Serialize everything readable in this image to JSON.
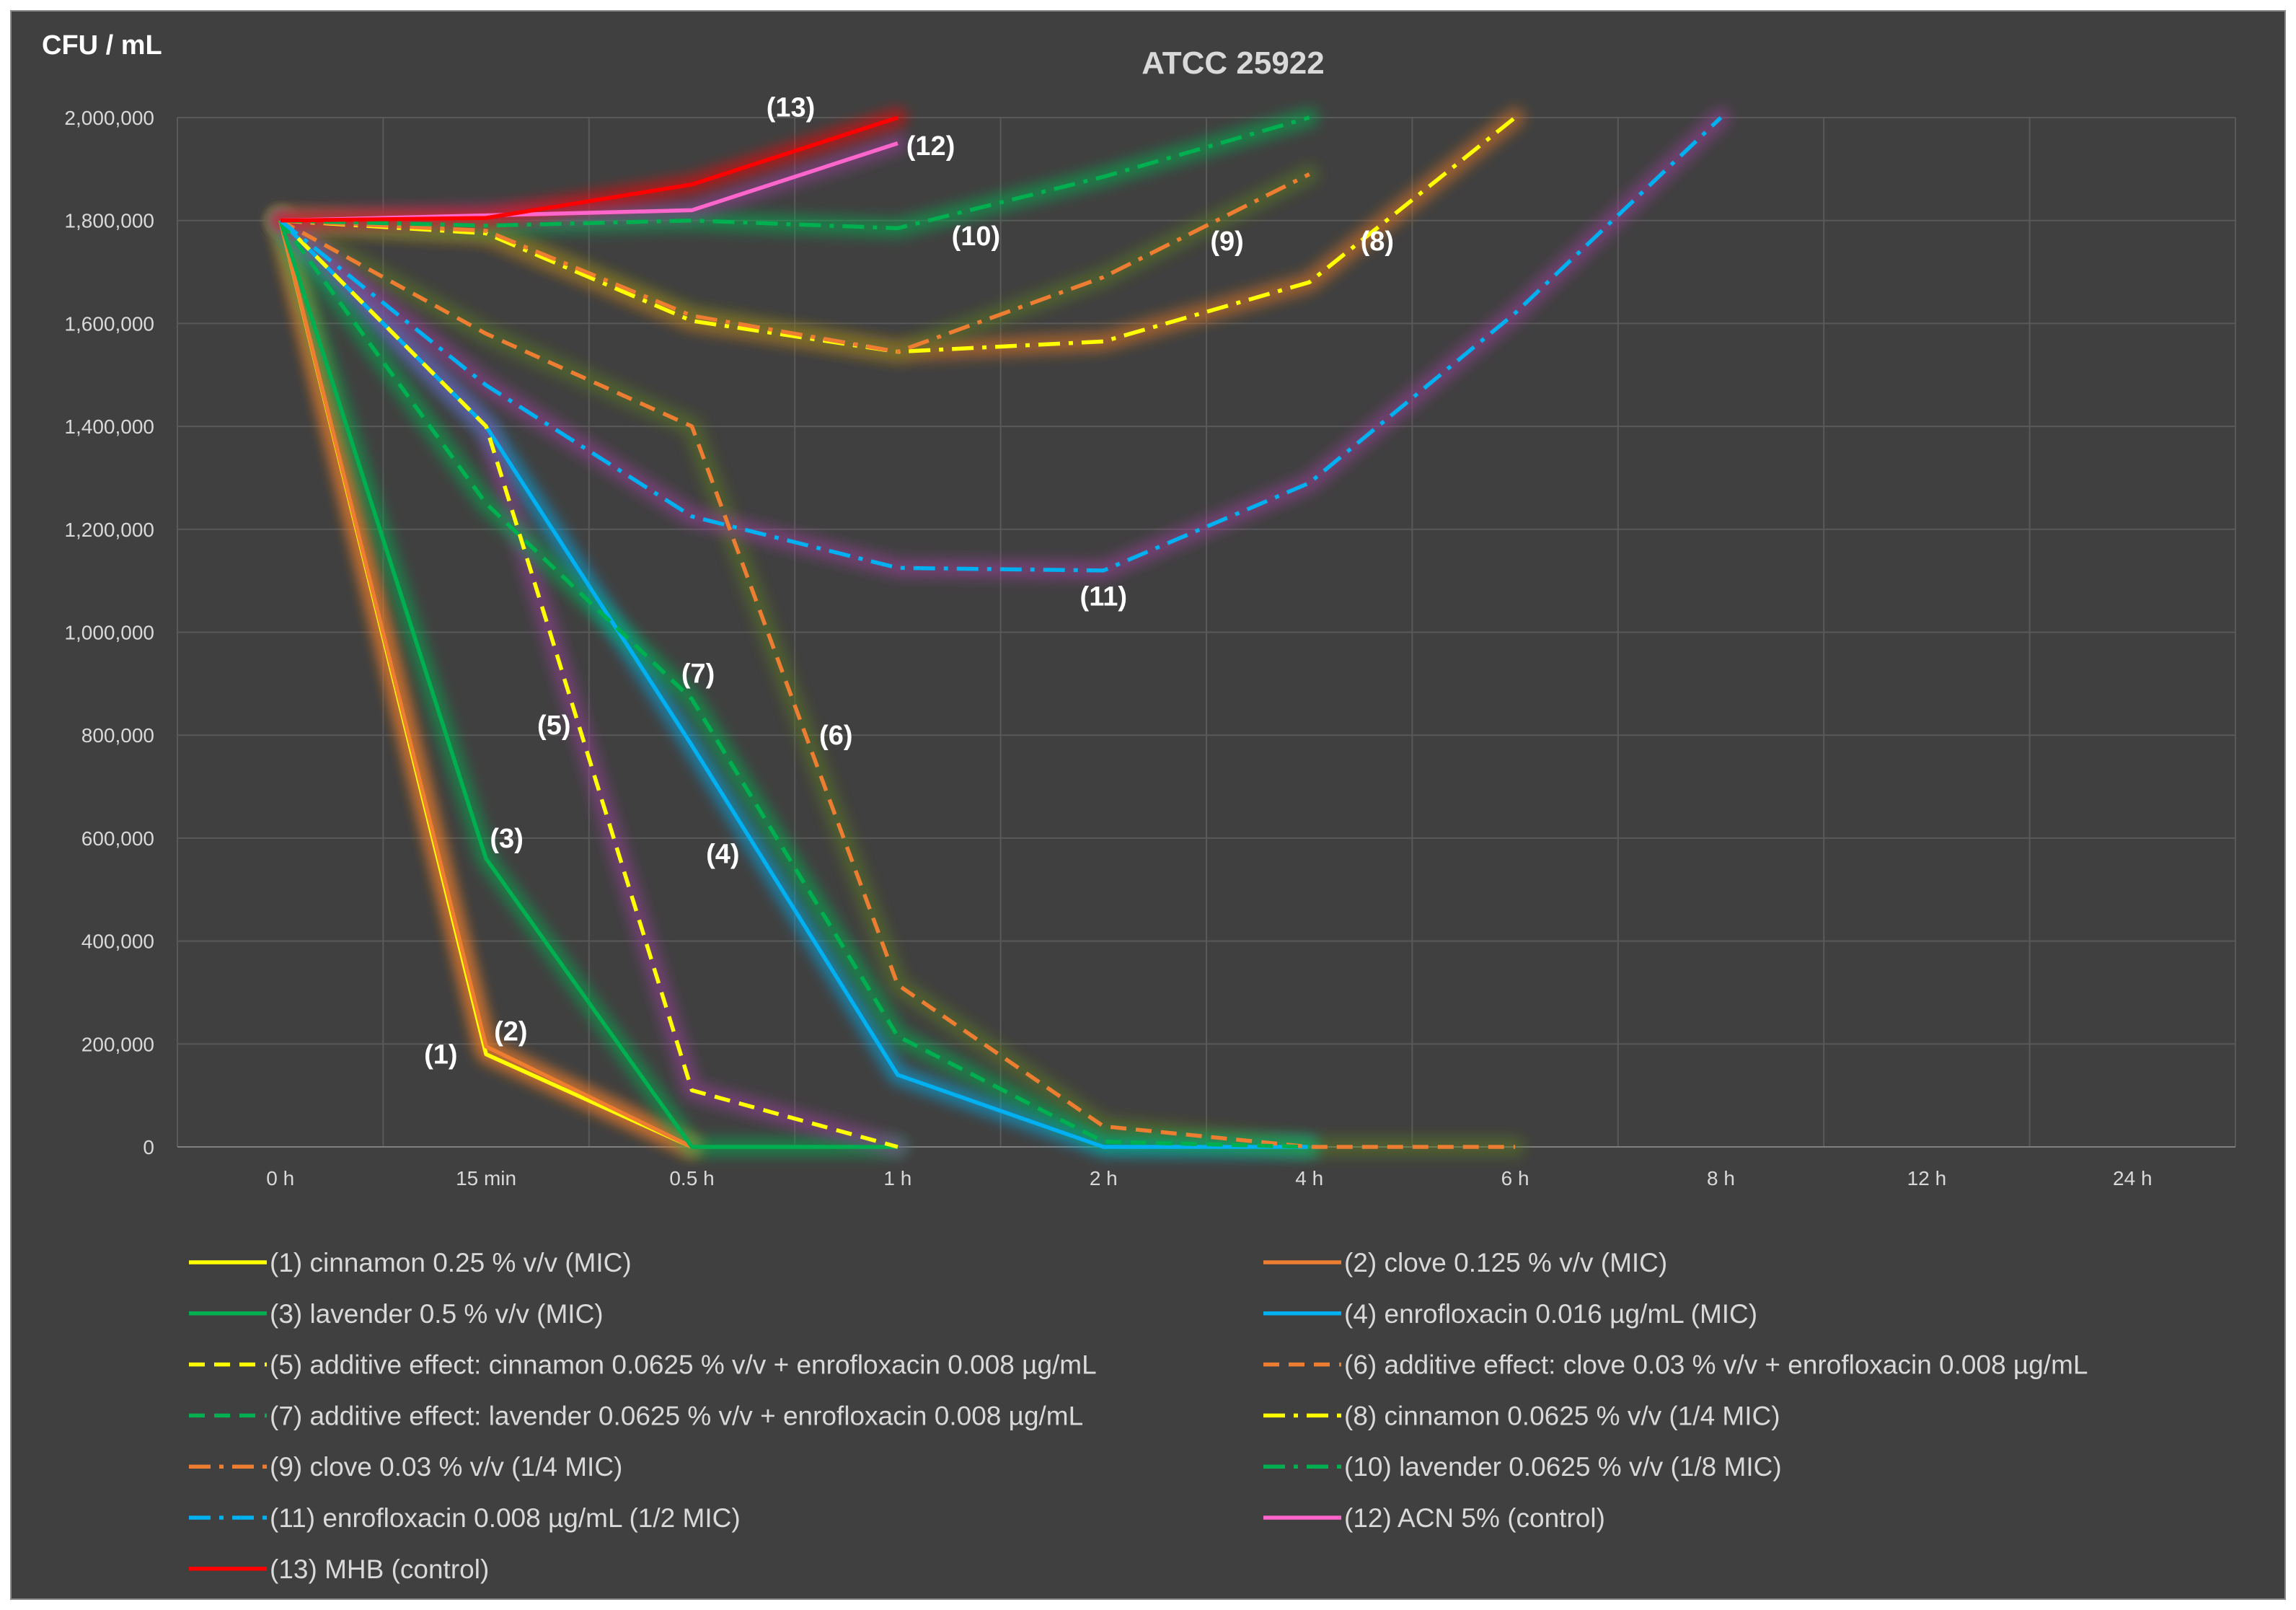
{
  "chart_data": {
    "type": "line",
    "title": "ATCC 25922",
    "ylabel": "CFU / mL",
    "xlabel": "",
    "categories": [
      "0 h",
      "15 min",
      "0.5 h",
      "1 h",
      "2 h",
      "4 h",
      "6 h",
      "8 h",
      "12 h",
      "24 h"
    ],
    "yticks": [
      "2,000,000",
      "1,800,000",
      "1,600,000",
      "1,400,000",
      "1,200,000",
      "1,000,000",
      "800,000",
      "600,000",
      "400,000",
      "200,000",
      "0"
    ],
    "ylim": [
      0,
      2000000
    ],
    "grid": true,
    "legend_position": "bottom",
    "series": [
      {
        "name": "(1) cinnamon 0.25 % v/v (MIC)",
        "label": "(1)",
        "color": "#ffff00",
        "dash": "solid",
        "glow": "#e87722",
        "values": [
          1800000,
          180000,
          0,
          null,
          null,
          null,
          null,
          null,
          null,
          null
        ],
        "label_value": [
          0.78,
          180000
        ]
      },
      {
        "name": "(2) clove 0.125 % v/v (MIC)",
        "label": "(2)",
        "color": "#ed7d31",
        "dash": "solid",
        "glow": "#ed7d31",
        "values": [
          1800000,
          195000,
          0,
          null,
          null,
          null,
          null,
          null,
          null,
          null
        ],
        "label_value": [
          1.12,
          225000
        ]
      },
      {
        "name": "(3) lavender 0.5 % v/v (MIC)",
        "label": "(3)",
        "color": "#00b050",
        "dash": "solid",
        "glow": "#00b050",
        "values": [
          1800000,
          560000,
          0,
          0,
          null,
          null,
          null,
          null,
          null,
          null
        ],
        "label_value": [
          1.1,
          600000
        ]
      },
      {
        "name": "(4) enrofloxacin 0.016 µg/mL (MIC)",
        "label": "(4)",
        "color": "#00b0f0",
        "dash": "solid",
        "glow": "#00b0f0",
        "values": [
          1800000,
          1400000,
          780000,
          140000,
          0,
          0,
          null,
          null,
          null,
          null
        ],
        "label_value": [
          2.15,
          570000
        ]
      },
      {
        "name": "(5) additive effect: cinnamon 0.0625 % v/v + enrofloxacin 0.008 µg/mL",
        "label": "(5)",
        "color": "#ffff00",
        "dash": "dash",
        "glow": "#9a3f9a",
        "values": [
          1800000,
          1400000,
          110000,
          0,
          null,
          null,
          null,
          null,
          null,
          null
        ],
        "label_value": [
          1.33,
          820000
        ]
      },
      {
        "name": "(6) additive effect: clove 0.03 % v/v + enrofloxacin 0.008 µg/mL",
        "label": "(6)",
        "color": "#ed7d31",
        "dash": "dash",
        "glow": "#5b7a1f",
        "values": [
          1800000,
          1580000,
          1400000,
          315000,
          40000,
          0,
          0,
          null,
          null,
          null
        ],
        "label_value": [
          2.7,
          800000
        ]
      },
      {
        "name": "(7) additive effect: lavender 0.0625 % v/v + enrofloxacin 0.008 µg/mL",
        "label": "(7)",
        "color": "#00b050",
        "dash": "dash",
        "glow": "#00b050",
        "values": [
          1800000,
          1250000,
          870000,
          215000,
          10000,
          0,
          null,
          null,
          null,
          null
        ],
        "label_value": [
          2.03,
          920000
        ]
      },
      {
        "name": "(8) cinnamon 0.0625 % v/v (1/4 MIC)",
        "label": "(8)",
        "color": "#ffff00",
        "dash": "dashdot",
        "glow": "#e87722",
        "values": [
          1800000,
          1775000,
          1605000,
          1545000,
          1565000,
          1680000,
          2000000,
          null,
          null,
          null
        ],
        "label_value": [
          5.33,
          1760000
        ]
      },
      {
        "name": "(9) clove 0.03 % v/v (1/4 MIC)",
        "label": "(9)",
        "color": "#ed7d31",
        "dash": "dashdot",
        "glow": "#5b7a1f",
        "values": [
          1800000,
          1780000,
          1615000,
          1545000,
          1690000,
          1890000,
          null,
          null,
          null,
          null
        ],
        "label_value": [
          4.6,
          1760000
        ]
      },
      {
        "name": "(10) lavender 0.0625 % v/v (1/8 MIC)",
        "label": "(10)",
        "color": "#00b050",
        "dash": "dashdot",
        "glow": "#00b050",
        "values": [
          1800000,
          1790000,
          1800000,
          1785000,
          1885000,
          2000000,
          null,
          null,
          null,
          null
        ],
        "label_value": [
          3.38,
          1770000
        ]
      },
      {
        "name": "(11) enrofloxacin 0.008 µg/mL (1/2 MIC)",
        "label": "(11)",
        "color": "#00b0f0",
        "dash": "dashdot",
        "glow": "#9a3f9a",
        "values": [
          1800000,
          1480000,
          1225000,
          1125000,
          1120000,
          1290000,
          1620000,
          2000000,
          null,
          null
        ],
        "label_value": [
          4.0,
          1070000
        ]
      },
      {
        "name": "(12) ACN 5% (control)",
        "label": "(12)",
        "color": "#ff66cc",
        "dash": "solid",
        "glow": "#9a3f9a",
        "values": [
          1800000,
          1810000,
          1820000,
          1950000,
          null,
          null,
          null,
          null,
          null,
          null
        ],
        "label_value": [
          3.16,
          1945000
        ]
      },
      {
        "name": "(13) MHB (control)",
        "label": "(13)",
        "color": "#ff0000",
        "dash": "solid",
        "glow": "#ff0000",
        "values": [
          1800000,
          1805000,
          1870000,
          2000000,
          null,
          null,
          null,
          null,
          null,
          null
        ],
        "label_value": [
          2.48,
          2020000
        ]
      }
    ]
  }
}
